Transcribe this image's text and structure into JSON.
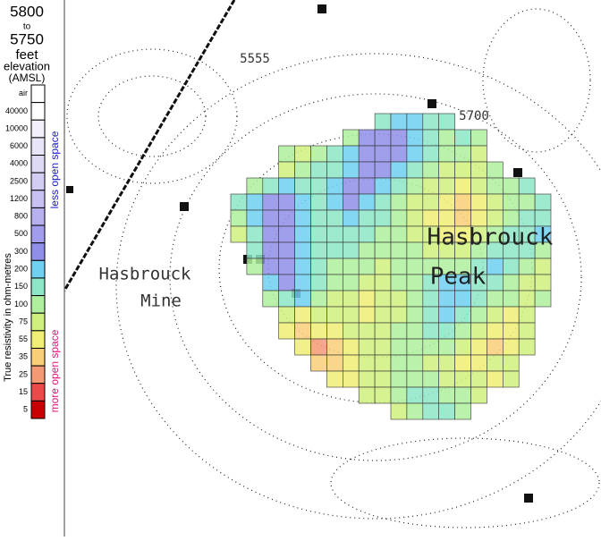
{
  "header": {
    "top": "5800",
    "joiner": "to",
    "bottom": "5750",
    "unit": "feet",
    "kind": "elevation",
    "datum": "(AMSL)"
  },
  "legend": {
    "title": "True resistivity in ohm-metres",
    "high_note": "less open space",
    "low_note": "more open space",
    "entries": [
      {
        "label": "air",
        "color": "#ffffff"
      },
      {
        "value": 40000,
        "color": "#ffffff"
      },
      {
        "value": 10000,
        "color": "#f3f0fb"
      },
      {
        "value": 6000,
        "color": "#e9e5f8"
      },
      {
        "value": 4000,
        "color": "#dedaf5"
      },
      {
        "value": 2500,
        "color": "#d2cdf3"
      },
      {
        "value": 1200,
        "color": "#c6c1f1"
      },
      {
        "value": 800,
        "color": "#b6b0ee"
      },
      {
        "value": 500,
        "color": "#a29cec"
      },
      {
        "value": 300,
        "color": "#8f8ee8"
      },
      {
        "value": 200,
        "color": "#6fd0f0"
      },
      {
        "value": 150,
        "color": "#8de6c6"
      },
      {
        "value": 100,
        "color": "#aeee9c"
      },
      {
        "value": 75,
        "color": "#cff07e"
      },
      {
        "value": 55,
        "color": "#f0ee74"
      },
      {
        "value": 35,
        "color": "#f8cf78"
      },
      {
        "value": 25,
        "color": "#f39a74"
      },
      {
        "value": 15,
        "color": "#ec4a4a"
      },
      {
        "value": 5,
        "color": "#c80000"
      }
    ]
  },
  "map_labels": {
    "peak_1": "Hasbrouck",
    "peak_2": "Peak",
    "mine_1": "Hasbrouck",
    "mine_2": "Mine",
    "contour_a": "5555",
    "contour_b": "5700"
  },
  "grid": {
    "rows": [
      [
        null,
        null,
        null,
        null,
        null,
        null,
        null,
        null,
        null,
        150,
        200,
        200,
        150,
        150,
        null,
        null,
        null,
        null,
        null,
        null
      ],
      [
        null,
        null,
        null,
        null,
        null,
        null,
        null,
        100,
        300,
        400,
        300,
        200,
        150,
        100,
        150,
        100,
        null,
        null,
        null,
        null
      ],
      [
        null,
        null,
        null,
        100,
        75,
        100,
        150,
        200,
        400,
        400,
        300,
        200,
        150,
        100,
        100,
        75,
        null,
        null,
        null,
        null
      ],
      [
        null,
        null,
        null,
        75,
        100,
        150,
        150,
        200,
        400,
        300,
        200,
        150,
        100,
        75,
        75,
        75,
        100,
        null,
        null,
        null
      ],
      [
        null,
        100,
        150,
        200,
        150,
        150,
        200,
        400,
        300,
        200,
        150,
        100,
        75,
        75,
        55,
        75,
        100,
        100,
        150,
        null
      ],
      [
        150,
        200,
        400,
        300,
        200,
        150,
        200,
        300,
        200,
        150,
        100,
        75,
        75,
        55,
        35,
        55,
        75,
        100,
        100,
        150
      ],
      [
        100,
        200,
        400,
        300,
        200,
        150,
        150,
        200,
        150,
        150,
        100,
        75,
        55,
        55,
        35,
        55,
        75,
        100,
        150,
        150
      ],
      [
        75,
        150,
        400,
        400,
        200,
        150,
        150,
        150,
        150,
        100,
        100,
        75,
        75,
        55,
        55,
        75,
        100,
        150,
        150,
        200
      ],
      [
        null,
        150,
        400,
        300,
        200,
        150,
        150,
        150,
        100,
        100,
        100,
        100,
        75,
        75,
        75,
        100,
        150,
        150,
        150,
        100
      ],
      [
        null,
        100,
        300,
        400,
        200,
        150,
        100,
        100,
        100,
        75,
        100,
        100,
        100,
        100,
        100,
        150,
        200,
        150,
        100,
        75
      ],
      [
        null,
        null,
        200,
        300,
        200,
        150,
        100,
        100,
        75,
        75,
        100,
        100,
        150,
        200,
        200,
        150,
        150,
        100,
        75,
        75
      ],
      [
        null,
        null,
        100,
        150,
        200,
        100,
        75,
        75,
        55,
        75,
        75,
        100,
        150,
        200,
        200,
        150,
        100,
        100,
        75,
        100
      ],
      [
        null,
        null,
        null,
        75,
        55,
        75,
        75,
        75,
        55,
        75,
        75,
        100,
        150,
        200,
        150,
        100,
        75,
        55,
        75,
        null
      ],
      [
        null,
        null,
        null,
        55,
        35,
        55,
        55,
        75,
        75,
        75,
        100,
        100,
        150,
        150,
        100,
        75,
        55,
        55,
        75,
        null
      ],
      [
        null,
        null,
        null,
        null,
        55,
        25,
        35,
        55,
        75,
        75,
        100,
        100,
        100,
        100,
        75,
        55,
        35,
        55,
        75,
        null
      ],
      [
        null,
        null,
        null,
        null,
        null,
        35,
        35,
        55,
        75,
        75,
        100,
        100,
        75,
        75,
        55,
        55,
        75,
        75,
        null,
        null
      ],
      [
        null,
        null,
        null,
        null,
        null,
        null,
        55,
        55,
        75,
        75,
        100,
        100,
        100,
        75,
        75,
        75,
        55,
        75,
        null,
        null
      ],
      [
        null,
        null,
        null,
        null,
        null,
        null,
        null,
        null,
        75,
        75,
        100,
        150,
        150,
        100,
        100,
        75,
        null,
        null,
        null,
        null
      ],
      [
        null,
        null,
        null,
        null,
        null,
        null,
        null,
        null,
        null,
        null,
        75,
        100,
        150,
        150,
        100,
        null,
        null,
        null,
        null,
        null
      ]
    ]
  }
}
